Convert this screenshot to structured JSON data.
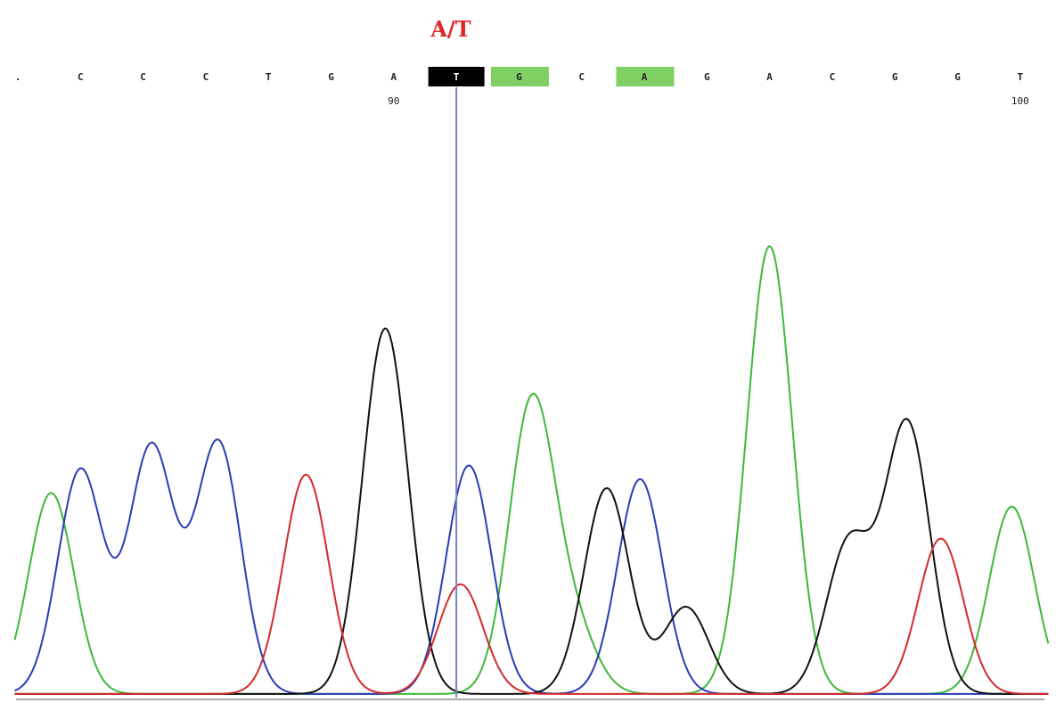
{
  "variant_label": "A/T",
  "chart_data": {
    "type": "line",
    "title": "",
    "xlabel": "",
    "ylabel": "",
    "variant_call": "A/T",
    "variant_base_index": 7,
    "base_calls": [
      {
        "base": ".",
        "highlight": "none"
      },
      {
        "base": "C",
        "highlight": "none"
      },
      {
        "base": "C",
        "highlight": "none"
      },
      {
        "base": "C",
        "highlight": "none"
      },
      {
        "base": "T",
        "highlight": "none"
      },
      {
        "base": "G",
        "highlight": "none"
      },
      {
        "base": "A",
        "highlight": "none",
        "position": "90"
      },
      {
        "base": "T",
        "highlight": "black"
      },
      {
        "base": "G",
        "highlight": "green"
      },
      {
        "base": "C",
        "highlight": "none"
      },
      {
        "base": "A",
        "highlight": "green"
      },
      {
        "base": "G",
        "highlight": "none"
      },
      {
        "base": "A",
        "highlight": "none"
      },
      {
        "base": "C",
        "highlight": "none"
      },
      {
        "base": "G",
        "highlight": "none"
      },
      {
        "base": "G",
        "highlight": "none"
      },
      {
        "base": "T",
        "highlight": "none",
        "position": "100"
      }
    ],
    "highlight_colors": {
      "black": "#000000",
      "green": "#7fcf63"
    },
    "trace_colors": {
      "A": "#3fb83a",
      "C": "#2a3bb5",
      "G": "#111111",
      "T": "#d42a2a"
    },
    "cursor_color": "#7a82c8",
    "ylim": [
      0,
      100
    ],
    "series": [
      {
        "base": "A",
        "peaks": [
          [
            0.8,
            44
          ],
          [
            12.3,
            63
          ],
          [
            13.3,
            14
          ],
          [
            18.0,
            98
          ],
          [
            23.8,
            41
          ]
        ]
      },
      {
        "base": "C",
        "peaks": [
          [
            1.5,
            49
          ],
          [
            3.2,
            54
          ],
          [
            4.8,
            55
          ],
          [
            10.8,
            50
          ],
          [
            14.9,
            47
          ]
        ]
      },
      {
        "base": "G",
        "peaks": [
          [
            8.8,
            80
          ],
          [
            14.1,
            45
          ],
          [
            16.0,
            19
          ],
          [
            19.9,
            33
          ],
          [
            21.3,
            59
          ]
        ]
      },
      {
        "base": "T",
        "peaks": [
          [
            6.9,
            48
          ],
          [
            10.6,
            24
          ],
          [
            22.1,
            34
          ]
        ]
      }
    ]
  }
}
